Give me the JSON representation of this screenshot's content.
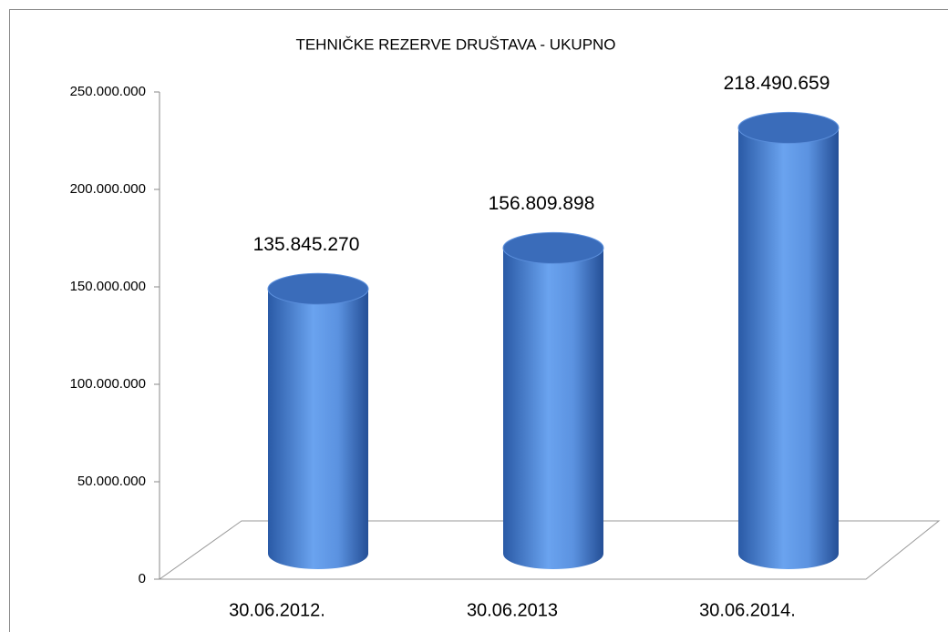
{
  "chart_data": {
    "type": "bar",
    "title": "TEHNIČKE REZERVE DRUŠTAVA - UKUPNO",
    "categories": [
      "30.06.2012.",
      "30.06.2013",
      "30.06.2014."
    ],
    "values": [
      135845270,
      156809898,
      218490659
    ],
    "value_labels": [
      "135.845.270",
      "156.809.898",
      "218.490.659"
    ],
    "color": "#4f86d9",
    "ylim": [
      0,
      250000000
    ],
    "yticks": [
      0,
      {
        "value": 50000000,
        "label": "50.000.000"
      },
      {
        "value": 100000000,
        "label": "100.000.000"
      },
      {
        "value": 150000000,
        "label": "150.000.000"
      },
      {
        "value": 200000000,
        "label": "200.000.000"
      },
      {
        "value": 250000000,
        "label": "250.000.000"
      }
    ]
  }
}
